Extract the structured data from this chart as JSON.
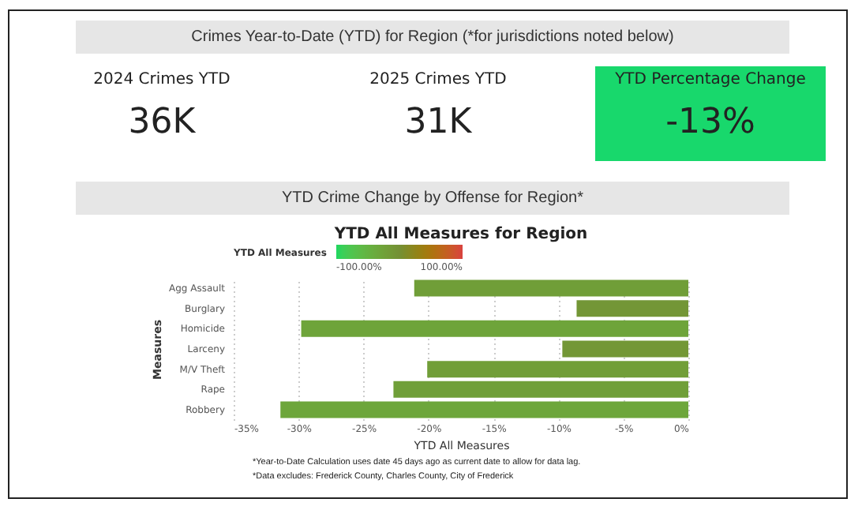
{
  "chart_data": [
    {
      "type": "other",
      "title": "Crimes Year-to-Date (YTD) for Region (*for jurisdictions noted below)",
      "annotations": [
        "2024 Crimes YTD",
        "36K",
        "2025 Crimes YTD",
        "31K",
        "YTD Percentage Change",
        "-13%"
      ]
    },
    {
      "type": "bar",
      "orientation": "horizontal",
      "title": "YTD Crime Change by Offense for Region*",
      "subtitle": "YTD All Measures for Region",
      "xlabel": "YTD All Measures",
      "ylabel": "Measures",
      "clabel": "YTD All Measures",
      "categories": [
        "Agg Assault",
        "Burglary",
        "Homicide",
        "Larceny",
        "M/V Theft",
        "Rape",
        "Robbery"
      ],
      "values": [
        -21.1,
        -8.6,
        -29.8,
        -9.7,
        -20.1,
        -22.7,
        -31.4
      ],
      "xlim": [
        -35,
        0
      ],
      "xticks": [
        {
          "value": -35,
          "label": "-35%"
        },
        {
          "value": -30,
          "label": "-30%"
        },
        {
          "value": -25,
          "label": "-25%"
        },
        {
          "value": -20,
          "label": "-20%"
        },
        {
          "value": -15,
          "label": "-15%"
        },
        {
          "value": -10,
          "label": "-10%"
        },
        {
          "value": -5,
          "label": "-5%"
        },
        {
          "value": 0,
          "label": "0%"
        }
      ],
      "clim": [
        -100,
        100
      ],
      "cticks": [
        {
          "value": -100,
          "label": "-100.00%"
        },
        {
          "value": 100,
          "label": "100.00%"
        }
      ],
      "grid": "x",
      "annotations": [
        "*Year-to-Date Calculation uses date 45 days ago as current date to allow for data lag.",
        "*Data excludes: Frederick County, Charles County, City of Frederick"
      ]
    }
  ]
}
